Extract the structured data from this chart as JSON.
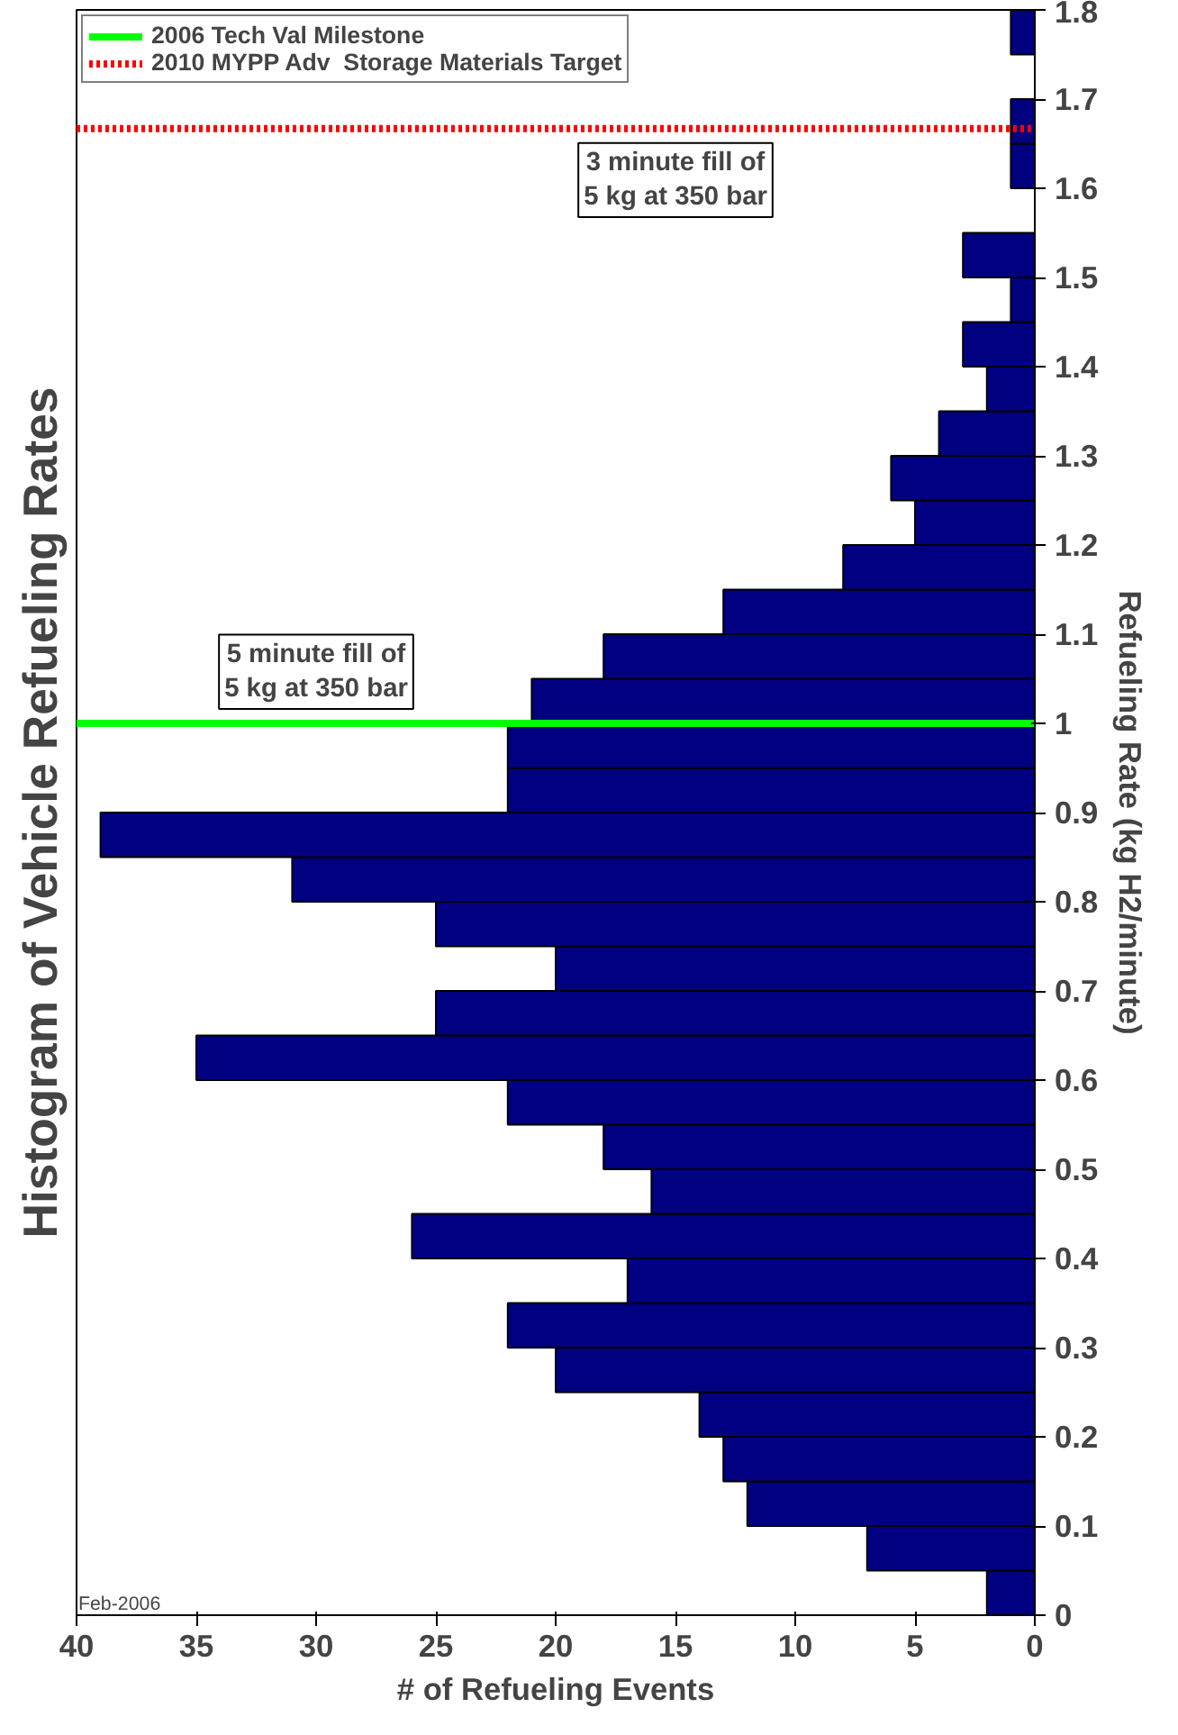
{
  "chart_data": {
    "type": "histogram",
    "orientation": "horizontal",
    "title": "Histogram of Vehicle Refueling Rates",
    "xlabel": "# of Refueling Events",
    "ylabel": "Refueling Rate (kg H2/minute)",
    "bins": [
      0,
      0.05,
      0.1,
      0.15,
      0.2,
      0.25,
      0.3,
      0.35,
      0.4,
      0.45,
      0.5,
      0.55,
      0.6,
      0.65,
      0.7,
      0.75,
      0.8,
      0.85,
      0.9,
      0.95,
      1.0,
      1.05,
      1.1,
      1.15,
      1.2,
      1.25,
      1.3,
      1.35,
      1.4,
      1.45,
      1.5,
      1.55,
      1.6,
      1.65,
      1.7,
      1.75,
      1.8
    ],
    "values": [
      2,
      7,
      12,
      13,
      14,
      20,
      22,
      17,
      26,
      16,
      18,
      22,
      35,
      25,
      20,
      25,
      31,
      39,
      22,
      22,
      21,
      18,
      13,
      8,
      5,
      6,
      4,
      2,
      3,
      1,
      3,
      0,
      1,
      1,
      0,
      1
    ],
    "color": "#000080",
    "xlim": [
      40,
      0
    ],
    "xticks": [
      0,
      5,
      10,
      15,
      20,
      25,
      30,
      35,
      40
    ],
    "ylim": [
      0,
      1.8
    ],
    "yticks": [
      0,
      0.1,
      0.2,
      0.3,
      0.4,
      0.5,
      0.6,
      0.7,
      0.8,
      0.9,
      1,
      1.1,
      1.2,
      1.3,
      1.4,
      1.5,
      1.6,
      1.7,
      1.8
    ],
    "grid": false,
    "legend": "top left",
    "ref_lines": [
      {
        "axis": "y",
        "value": 1.0,
        "label": "2006 Tech Val Milestone",
        "color": "#00ff00",
        "line_style": "solid"
      },
      {
        "axis": "y",
        "value": 1.667,
        "label": "2010 MYPP Adv  Storage Materials Target",
        "color": "#ff0000",
        "line_style": "dotted"
      }
    ],
    "annotations": [
      {
        "text": "5 minute fill of\n5 kg at 350 bar",
        "x": 30,
        "y": 1.0
      },
      {
        "text": "3 minute fill of\n5 kg at 350 bar",
        "x": 15,
        "y": 1.667
      },
      "Feb-2006"
    ]
  }
}
